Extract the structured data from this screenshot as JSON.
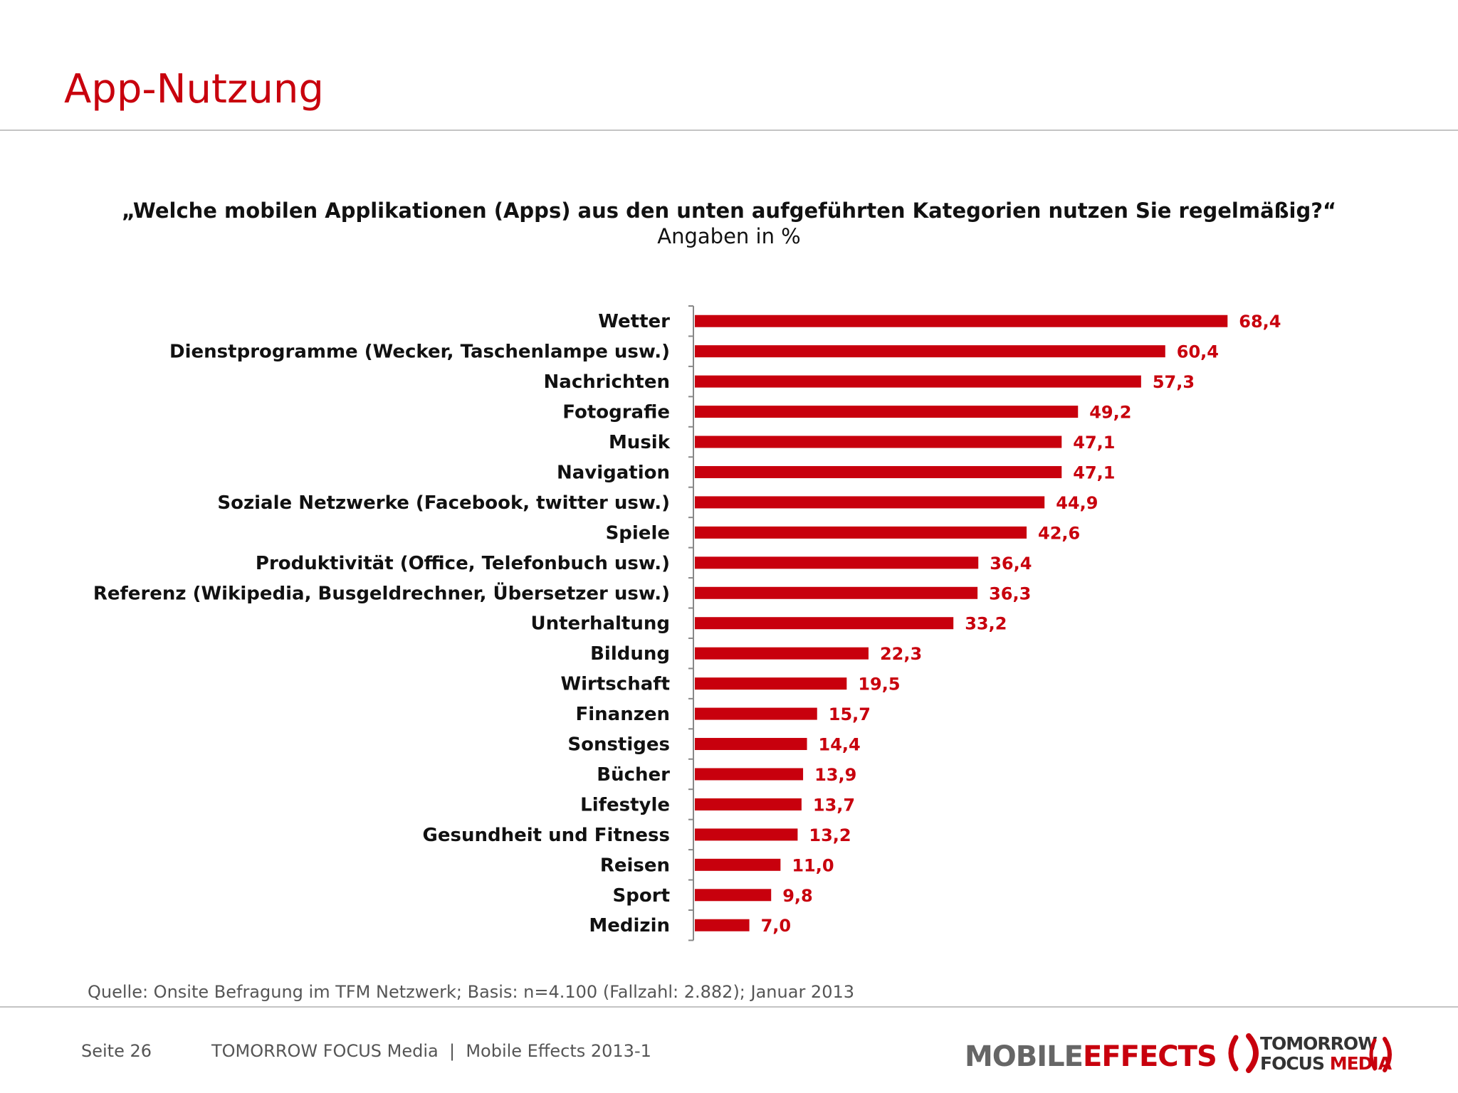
{
  "header": {
    "title": "App-Nutzung"
  },
  "chart_data": {
    "type": "bar",
    "orientation": "horizontal",
    "title": "„Welche mobilen Applikationen (Apps) aus den unten aufgeführten Kategorien nutzen Sie regelmäßig?“",
    "subtitle": "Angaben in %",
    "categories": [
      "Wetter",
      "Dienstprogramme (Wecker, Taschenlampe usw.)",
      "Nachrichten",
      "Fotografie",
      "Musik",
      "Navigation",
      "Soziale Netzwerke (Facebook, twitter usw.)",
      "Spiele",
      "Produktivität (Office, Telefonbuch usw.)",
      "Referenz (Wikipedia, Busgeldrechner, Übersetzer usw.)",
      "Unterhaltung",
      "Bildung",
      "Wirtschaft",
      "Finanzen",
      "Sonstiges",
      "Bücher",
      "Lifestyle",
      "Gesundheit und Fitness",
      "Reisen",
      "Sport",
      "Medizin"
    ],
    "values": [
      68.4,
      60.4,
      57.3,
      49.2,
      47.1,
      47.1,
      44.9,
      42.6,
      36.4,
      36.3,
      33.2,
      22.3,
      19.5,
      15.7,
      14.4,
      13.9,
      13.7,
      13.2,
      11.0,
      9.8,
      7.0
    ],
    "value_labels": [
      "68,4",
      "60,4",
      "57,3",
      "49,2",
      "47,1",
      "47,1",
      "44,9",
      "42,6",
      "36,4",
      "36,3",
      "33,2",
      "22,3",
      "19,5",
      "15,7",
      "14,4",
      "13,9",
      "13,7",
      "13,2",
      "11,0",
      "9,8",
      "7,0"
    ],
    "bar_color": "#c8000d",
    "grid": false,
    "legend": "none"
  },
  "source": "Quelle: Onsite Befragung im TFM Netzwerk; Basis: n=4.100 (Fallzahl: 2.882); Januar 2013",
  "footer": {
    "page": "Seite 26",
    "company": "TOMORROW FOCUS Media  |  Mobile Effects 2013-1"
  },
  "logos": {
    "mobile_effects": {
      "part1": "MOBILE",
      "part2": "EFFECTS"
    },
    "tfm": {
      "line1": "TOMORROW",
      "line2a": "FOCUS",
      "line2b": "MEDIA"
    }
  }
}
